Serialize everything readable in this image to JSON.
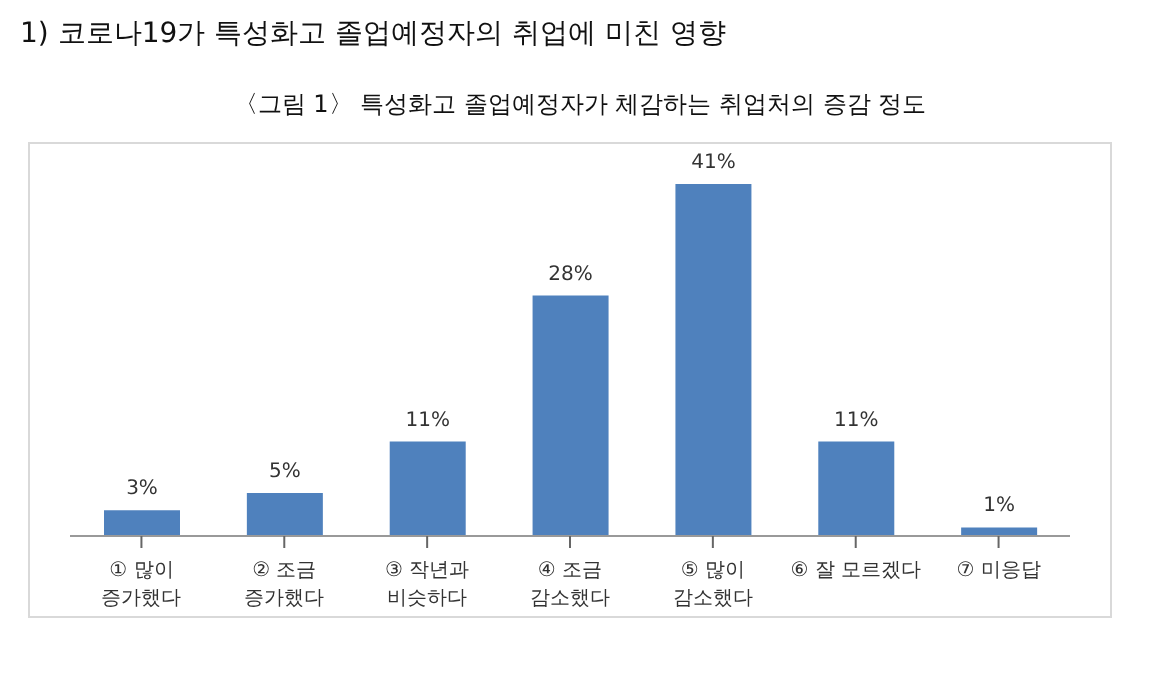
{
  "chart_data": {
    "type": "bar",
    "title": "1) 코로나19가 특성화고 졸업예정자의 취업에 미친 영향",
    "subtitle": "〈그림 1〉 특성화고 졸업예정자가 체감하는 취업처의 증감 정도",
    "categories": [
      "① 많이 증가했다",
      "② 조금 증가했다",
      "③ 작년과 비슷하다",
      "④ 조금 감소했다",
      "⑤ 많이 감소했다",
      "⑥ 잘 모르겠다",
      "⑦ 미응답"
    ],
    "values": [
      3,
      5,
      11,
      28,
      41,
      11,
      1
    ],
    "value_labels": [
      "3%",
      "5%",
      "11%",
      "28%",
      "41%",
      "11%",
      "1%"
    ],
    "color": "#4f81bd",
    "grid": false,
    "legend": false
  }
}
